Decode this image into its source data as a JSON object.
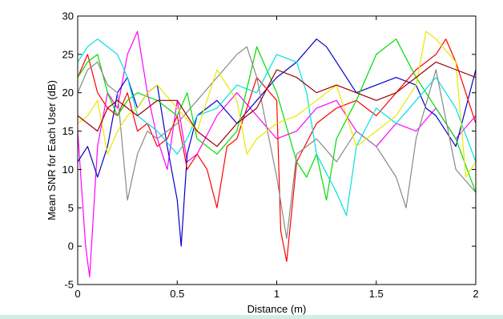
{
  "chart_data": {
    "type": "line",
    "title": "",
    "xlabel": "Distance (m)",
    "ylabel": "Mean SNR for Each User (dB)",
    "xlim": [
      0,
      2
    ],
    "ylim": [
      -5,
      30
    ],
    "xticks": [
      0,
      0.5,
      1,
      1.5,
      2
    ],
    "xtick_labels": [
      "0",
      "0.5",
      "1",
      "1.5",
      "2"
    ],
    "yticks": [
      -5,
      0,
      5,
      10,
      15,
      20,
      25,
      30
    ],
    "ytick_labels": [
      "-5",
      "0",
      "5",
      "10",
      "15",
      "20",
      "25",
      "30"
    ],
    "grid": false,
    "legend": false,
    "series": [
      {
        "color": "#ff00ff",
        "x": [
          0,
          0.04,
          0.06,
          0.1,
          0.15,
          0.2,
          0.25,
          0.3,
          0.35,
          0.4,
          0.45,
          0.5,
          0.55,
          0.6,
          0.7,
          0.8,
          0.9,
          1.0,
          1.1,
          1.2,
          1.3,
          1.4,
          1.5,
          1.6,
          1.7,
          1.8,
          1.9,
          2.0
        ],
        "values": [
          15,
          0,
          -4,
          13,
          20,
          18,
          25,
          28,
          20,
          14,
          10,
          19,
          11,
          12,
          17,
          20,
          17,
          14,
          15,
          18,
          19,
          15,
          13,
          16,
          15,
          18,
          14,
          17
        ]
      },
      {
        "color": "#0000cc",
        "x": [
          0,
          0.05,
          0.1,
          0.15,
          0.2,
          0.25,
          0.3,
          0.35,
          0.4,
          0.45,
          0.5,
          0.52,
          0.55,
          0.6,
          0.7,
          0.8,
          0.9,
          1.0,
          1.1,
          1.2,
          1.25,
          1.3,
          1.4,
          1.5,
          1.6,
          1.7,
          1.75,
          1.8,
          1.9,
          2.0
        ],
        "values": [
          11,
          13,
          9,
          13,
          20,
          22,
          18,
          20,
          21,
          13,
          6,
          0,
          12,
          17,
          19,
          16,
          19,
          22,
          24,
          27,
          26,
          24,
          20,
          21,
          22,
          21,
          18,
          17,
          13,
          23
        ]
      },
      {
        "color": "#ff0000",
        "x": [
          0,
          0.05,
          0.1,
          0.15,
          0.2,
          0.25,
          0.3,
          0.35,
          0.4,
          0.45,
          0.5,
          0.55,
          0.6,
          0.65,
          0.7,
          0.75,
          0.8,
          0.9,
          1.0,
          1.02,
          1.05,
          1.1,
          1.2,
          1.3,
          1.4,
          1.5,
          1.6,
          1.7,
          1.8,
          1.85,
          1.9,
          2.0
        ],
        "values": [
          22,
          25,
          20,
          18,
          17,
          20,
          15,
          16,
          13,
          14,
          17,
          10,
          12,
          10,
          5,
          13,
          14,
          22,
          19,
          2,
          -2,
          11,
          16,
          18,
          19,
          17,
          20,
          23,
          25,
          27,
          24,
          16
        ]
      },
      {
        "color": "#00dd00",
        "x": [
          0,
          0.05,
          0.1,
          0.15,
          0.2,
          0.25,
          0.3,
          0.4,
          0.5,
          0.55,
          0.6,
          0.7,
          0.8,
          0.9,
          1.0,
          1.1,
          1.15,
          1.2,
          1.25,
          1.3,
          1.4,
          1.5,
          1.6,
          1.7,
          1.8,
          1.9,
          2.0
        ],
        "values": [
          22,
          24,
          25,
          20,
          17,
          19,
          20,
          19,
          17,
          20,
          14,
          12,
          15,
          26,
          20,
          11,
          9,
          12,
          6,
          14,
          19,
          25,
          27,
          22,
          18,
          14,
          7
        ]
      },
      {
        "color": "#00e0e0",
        "x": [
          0,
          0.05,
          0.1,
          0.15,
          0.2,
          0.25,
          0.3,
          0.4,
          0.5,
          0.55,
          0.6,
          0.7,
          0.8,
          0.9,
          1.0,
          1.1,
          1.15,
          1.2,
          1.3,
          1.35,
          1.4,
          1.5,
          1.6,
          1.7,
          1.8,
          1.9,
          2.0
        ],
        "values": [
          24,
          26,
          27,
          26,
          25,
          22,
          17,
          15,
          12,
          14,
          17,
          18,
          21,
          20,
          25,
          24,
          20,
          12,
          7,
          4,
          13,
          18,
          16,
          19,
          22,
          18,
          11
        ]
      },
      {
        "color": "#888888",
        "x": [
          0,
          0.05,
          0.1,
          0.15,
          0.2,
          0.25,
          0.3,
          0.35,
          0.4,
          0.5,
          0.6,
          0.7,
          0.8,
          0.85,
          0.9,
          1.0,
          1.05,
          1.1,
          1.2,
          1.3,
          1.4,
          1.5,
          1.6,
          1.65,
          1.7,
          1.8,
          1.9,
          2.0
        ],
        "values": [
          20,
          23,
          24,
          21,
          20,
          6,
          12,
          15,
          14,
          16,
          19,
          22,
          25,
          26,
          22,
          9,
          1,
          12,
          14,
          11,
          15,
          13,
          9,
          5,
          14,
          23,
          10,
          7
        ]
      },
      {
        "color": "#e8e800",
        "x": [
          0,
          0.05,
          0.1,
          0.15,
          0.2,
          0.25,
          0.3,
          0.35,
          0.4,
          0.5,
          0.6,
          0.7,
          0.8,
          0.85,
          0.9,
          1.0,
          1.1,
          1.2,
          1.3,
          1.4,
          1.5,
          1.6,
          1.7,
          1.75,
          1.8,
          1.9,
          1.95,
          2.0
        ],
        "values": [
          16,
          17,
          19,
          12,
          15,
          17,
          18,
          20,
          21,
          18,
          15,
          23,
          19,
          12,
          14,
          16,
          17,
          19,
          21,
          13,
          15,
          17,
          21,
          28,
          27,
          24,
          9,
          11
        ]
      },
      {
        "color": "#990000",
        "x": [
          0,
          0.05,
          0.1,
          0.15,
          0.2,
          0.25,
          0.3,
          0.35,
          0.4,
          0.45,
          0.5,
          0.6,
          0.7,
          0.8,
          0.9,
          1.0,
          1.1,
          1.2,
          1.3,
          1.4,
          1.5,
          1.6,
          1.7,
          1.8,
          1.9,
          2.0
        ],
        "values": [
          17,
          16,
          15,
          18,
          19,
          18,
          17,
          18,
          19,
          19,
          19,
          15,
          13,
          16,
          18,
          23,
          22,
          20,
          21,
          20,
          19,
          20,
          22,
          24,
          23,
          22
        ]
      }
    ]
  }
}
